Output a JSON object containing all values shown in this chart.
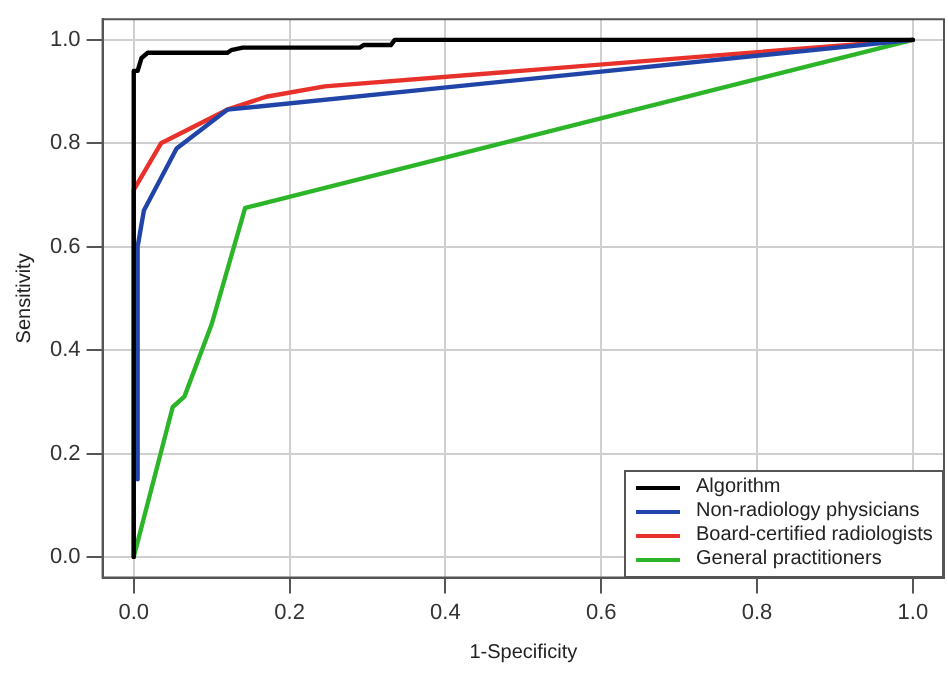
{
  "chart_data": {
    "type": "line",
    "xlabel": "1-Specificity",
    "ylabel": "Sensitivity",
    "xlim": [
      -0.04,
      1.04
    ],
    "ylim": [
      -0.04,
      1.04
    ],
    "xticks": [
      {
        "value": 0,
        "label": "0.0"
      },
      0.2,
      0.4,
      0.6,
      0.8,
      {
        "value": 1,
        "label": "1.0"
      }
    ],
    "yticks": [
      {
        "value": 0,
        "label": "0.0"
      },
      0.2,
      0.4,
      0.6,
      0.8,
      {
        "value": 1,
        "label": "1.0"
      }
    ],
    "grid": true,
    "legend": "bottom right",
    "marker": "none",
    "line_style": "solid",
    "series": [
      {
        "name": "Algorithm",
        "color": "#000000",
        "x": [
          0,
          0,
          0.005,
          0.01,
          0.018,
          0.12,
          0.125,
          0.14,
          0.29,
          0.295,
          0.33,
          0.335,
          1
        ],
        "values": [
          0,
          0.94,
          0.94,
          0.965,
          0.975,
          0.975,
          0.98,
          0.985,
          0.985,
          0.99,
          0.99,
          1,
          1
        ]
      },
      {
        "name": "Non-radiology physicians",
        "color": "#2144a8",
        "x": [
          0.005,
          0.005,
          0.013,
          0.055,
          0.12,
          1
        ],
        "values": [
          0.15,
          0.6,
          0.67,
          0.79,
          0.865,
          1
        ]
      },
      {
        "name": "Board-certified radiologists",
        "color": "#e8312a",
        "x": [
          0,
          0,
          0.035,
          0.12,
          0.17,
          0.245,
          1
        ],
        "values": [
          0,
          0.71,
          0.8,
          0.865,
          0.89,
          0.91,
          1
        ]
      },
      {
        "name": "General practitioners",
        "color": "#2db52a",
        "x": [
          0,
          0.05,
          0.065,
          0.1,
          0.143,
          1
        ],
        "values": [
          0,
          0.29,
          0.31,
          0.45,
          0.675,
          1
        ]
      }
    ]
  }
}
